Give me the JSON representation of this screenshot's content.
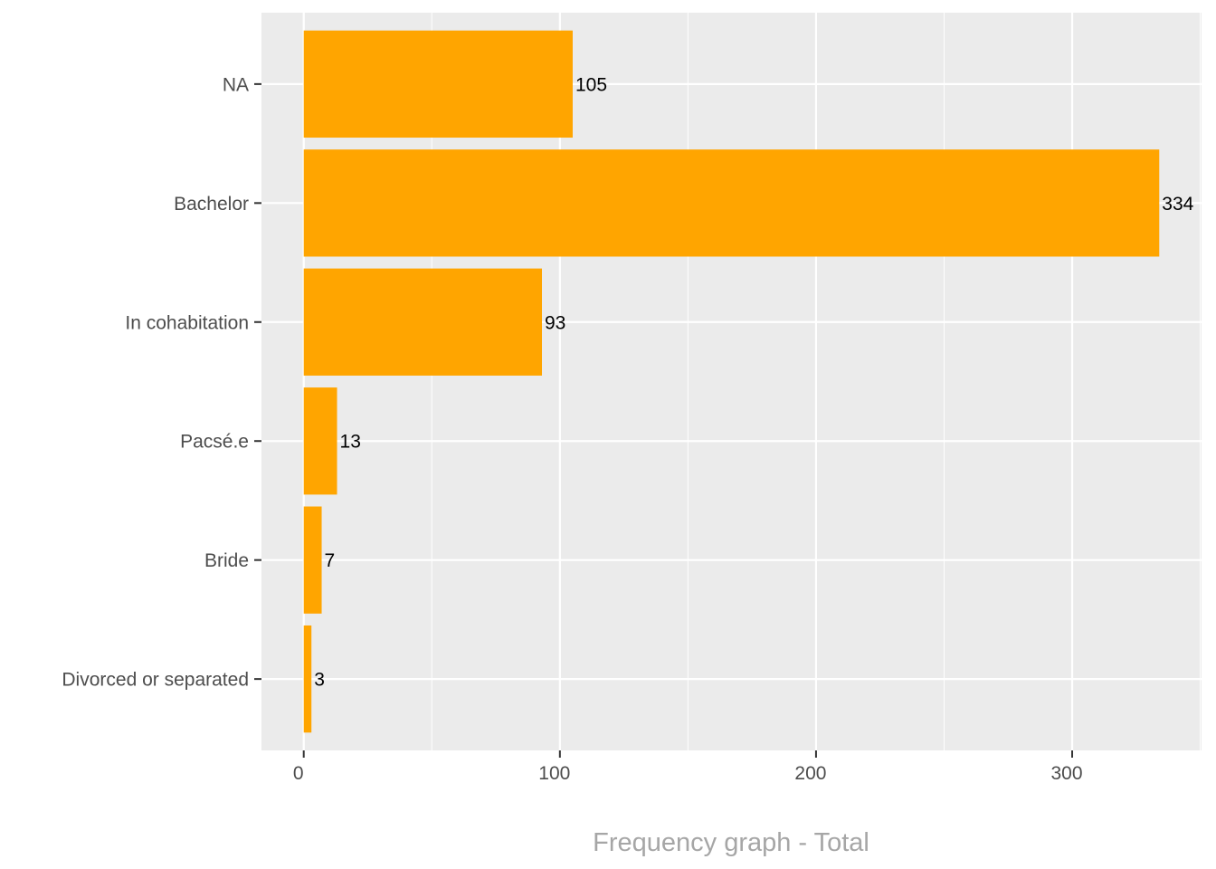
{
  "chart_data": {
    "type": "bar",
    "orientation": "horizontal",
    "categories": [
      "NA",
      "Bachelor",
      "In cohabitation",
      "Pacsé.e",
      "Bride",
      "Divorced or separated"
    ],
    "values": [
      105,
      334,
      93,
      13,
      7,
      3
    ],
    "data_labels": [
      "105",
      "334",
      "93",
      "13",
      "7",
      "3"
    ],
    "xlabel": "Frequency graph - Total",
    "ylabel": "",
    "xlim": [
      -16.5,
      350.5
    ],
    "x_ticks": [
      0,
      100,
      200,
      300
    ],
    "x_tick_labels": [
      "0",
      "100",
      "200",
      "300"
    ],
    "grid": true,
    "bar_color": "#FFA500",
    "panel_color": "#EBEBEB",
    "grid_color": "#FFFFFF"
  }
}
